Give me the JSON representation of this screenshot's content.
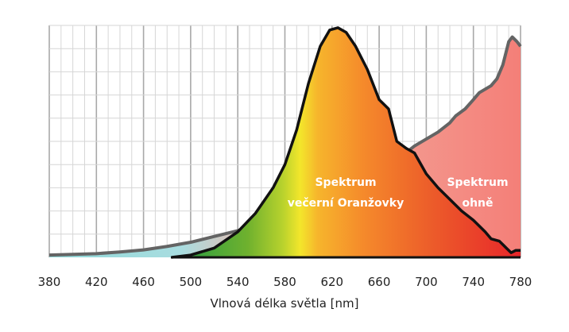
{
  "chart_data": {
    "type": "area",
    "title": "",
    "xlabel": "Vlnová délka světla [nm]",
    "ylabel": "",
    "xlim": [
      380,
      780
    ],
    "ylim": [
      0,
      100
    ],
    "x_ticks": [
      380,
      420,
      460,
      500,
      540,
      580,
      620,
      660,
      700,
      740,
      780
    ],
    "grid": true,
    "series": [
      {
        "annotation": [
          "Spektrum",
          "večerní Oranžovky"
        ],
        "fill": "spectral",
        "points": [
          [
            484,
            0
          ],
          [
            500,
            1
          ],
          [
            520,
            4
          ],
          [
            540,
            11
          ],
          [
            555,
            19
          ],
          [
            570,
            30
          ],
          [
            580,
            40
          ],
          [
            590,
            55
          ],
          [
            600,
            75
          ],
          [
            610,
            91
          ],
          [
            618,
            98
          ],
          [
            625,
            99
          ],
          [
            632,
            97
          ],
          [
            640,
            91
          ],
          [
            650,
            81
          ],
          [
            660,
            68
          ],
          [
            668,
            64
          ],
          [
            675,
            50
          ],
          [
            683,
            47
          ],
          [
            690,
            45
          ],
          [
            700,
            36
          ],
          [
            710,
            30
          ],
          [
            720,
            25
          ],
          [
            730,
            20
          ],
          [
            740,
            16
          ],
          [
            750,
            11
          ],
          [
            755,
            8
          ],
          [
            762,
            7
          ],
          [
            768,
            4
          ],
          [
            772,
            2
          ],
          [
            776,
            3
          ],
          [
            780,
            3
          ]
        ]
      },
      {
        "annotation": [
          "Spektrum",
          "ohně"
        ],
        "fill": "#f47f78",
        "points": [
          [
            380,
            1
          ],
          [
            400,
            1.3
          ],
          [
            420,
            1.6
          ],
          [
            440,
            2.3
          ],
          [
            460,
            3.2
          ],
          [
            480,
            4.7
          ],
          [
            500,
            6.5
          ],
          [
            520,
            9
          ],
          [
            540,
            11.5
          ],
          [
            560,
            15
          ],
          [
            580,
            19.5
          ],
          [
            600,
            24
          ],
          [
            620,
            29
          ],
          [
            640,
            32
          ],
          [
            660,
            38
          ],
          [
            680,
            44
          ],
          [
            690,
            48
          ],
          [
            700,
            51
          ],
          [
            710,
            54
          ],
          [
            720,
            58
          ],
          [
            725,
            61
          ],
          [
            733,
            64
          ],
          [
            740,
            68
          ],
          [
            745,
            71
          ],
          [
            755,
            74
          ],
          [
            760,
            77
          ],
          [
            765,
            83
          ],
          [
            770,
            93
          ],
          [
            773,
            95
          ],
          [
            777,
            93
          ],
          [
            780,
            91
          ]
        ]
      }
    ]
  }
}
